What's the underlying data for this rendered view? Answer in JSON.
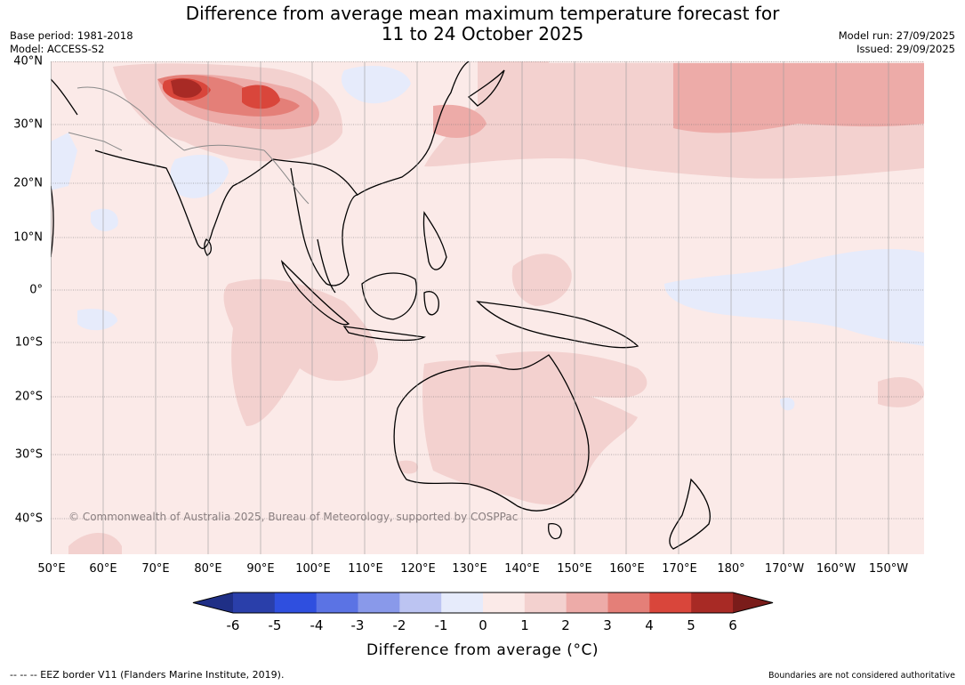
{
  "title": {
    "line1": "Difference from average mean maximum temperature forecast for",
    "line2": "11 to 24 October 2025"
  },
  "meta_left": {
    "base_period": "Base period: 1981-2018",
    "model": "Model: ACCESS-S2"
  },
  "meta_right": {
    "model_run": "Model run: 27/09/2025",
    "issued": "Issued: 29/09/2025"
  },
  "map": {
    "lat_labels": [
      "40°N",
      "30°N",
      "20°N",
      "10°N",
      "0°",
      "10°S",
      "20°S",
      "30°S",
      "40°S"
    ],
    "lon_labels": [
      "50°E",
      "60°E",
      "70°E",
      "80°E",
      "90°E",
      "100°E",
      "110°E",
      "120°E",
      "130°E",
      "140°E",
      "150°E",
      "160°E",
      "170°E",
      "180°",
      "170°W",
      "160°W",
      "150°W"
    ],
    "copyright": "© Commonwealth of Australia 2025, Bureau of Meteorology, supported by COSPPac"
  },
  "colorbar": {
    "ticks": [
      "-6",
      "-5",
      "-4",
      "-3",
      "-2",
      "-1",
      "0",
      "1",
      "2",
      "3",
      "4",
      "5",
      "6"
    ],
    "label": "Difference from average (°C)",
    "colors": [
      "#2a3faa",
      "#2f4fdf",
      "#5b73e4",
      "#8999ea",
      "#bcc4f2",
      "#e6ebfb",
      "#fbeae8",
      "#f3d1cf",
      "#edaba8",
      "#e47f78",
      "#d9463b",
      "#a82a25"
    ],
    "under_color": "#1f2f86",
    "over_color": "#7a1c1a"
  },
  "footer": {
    "eez": "--  --  -- EEZ border V11 (Flanders Marine Institute, 2019).",
    "disclaimer": "Boundaries are not considered authoritative"
  }
}
